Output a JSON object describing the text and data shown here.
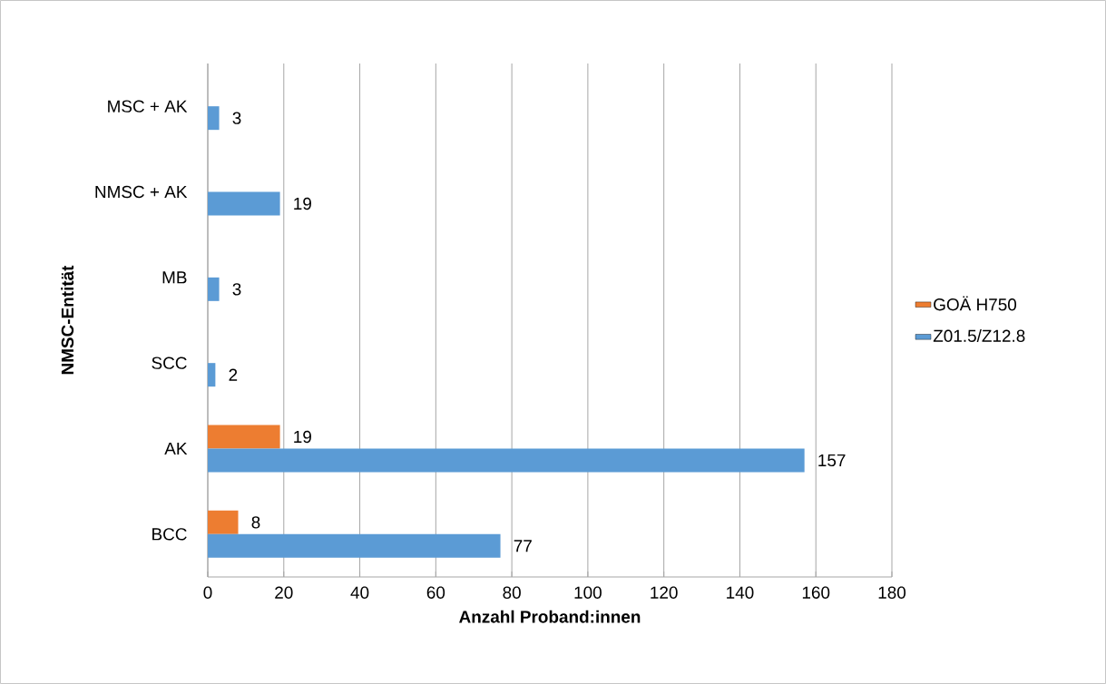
{
  "chart_data": {
    "type": "bar",
    "orientation": "horizontal",
    "categories": [
      "MSC + AK",
      "NMSC + AK",
      "MB",
      "SCC",
      "AK",
      "BCC"
    ],
    "series": [
      {
        "name": "GOÄ H750",
        "color": "#ed7d31",
        "values": [
          null,
          null,
          null,
          null,
          19,
          8
        ]
      },
      {
        "name": "Z01.5/Z12.8",
        "color": "#5b9bd5",
        "values": [
          3,
          19,
          3,
          2,
          157,
          77
        ]
      }
    ],
    "xlim": [
      0,
      180
    ],
    "xticks": [
      0,
      20,
      40,
      60,
      80,
      100,
      120,
      140,
      160,
      180
    ],
    "xlabel": "Anzahl Proband:innen",
    "ylabel": "NMSC-Entität",
    "grid": "x",
    "legend": "right",
    "data_labels": true
  }
}
